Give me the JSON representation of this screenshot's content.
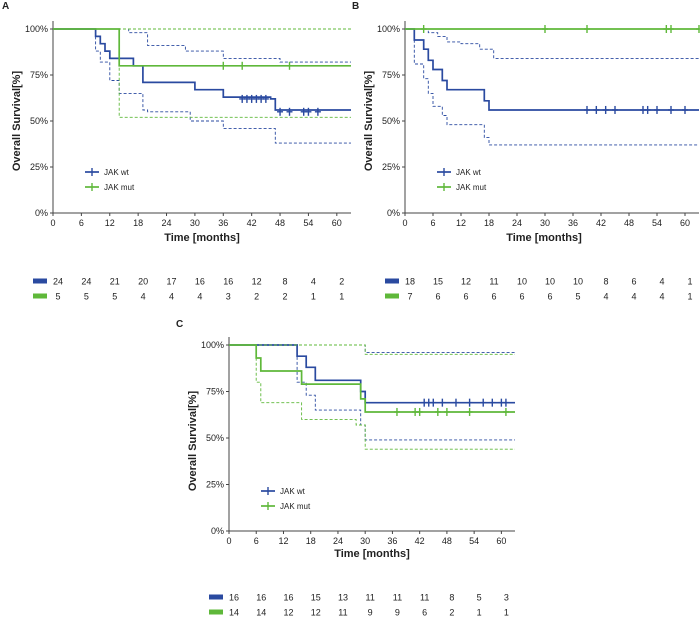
{
  "colors": {
    "wt": "#2a4aa0",
    "mut": "#5fb83a",
    "axis": "#444444"
  },
  "x_label": "Time [months]",
  "y_label": "Overall Survival[%]",
  "legend": {
    "wt": "JAK wt",
    "mut": "JAK mut"
  },
  "x_ticks": [
    0,
    6,
    12,
    18,
    24,
    30,
    36,
    42,
    48,
    54,
    60
  ],
  "y_ticks": [
    "0%",
    "25%",
    "50%",
    "75%",
    "100%"
  ],
  "chart_data": [
    {
      "panel": "A",
      "type": "line",
      "subtype": "kaplan-meier step",
      "xlabel": "Time [months]",
      "ylabel": "Overall Survival[%]",
      "xlim": [
        0,
        63
      ],
      "ylim": [
        0,
        100
      ],
      "series": [
        {
          "name": "JAK wt",
          "color": "#2a4aa0",
          "steps": [
            [
              0,
              100
            ],
            [
              9,
              96
            ],
            [
              10,
              92
            ],
            [
              11,
              88
            ],
            [
              12,
              84
            ],
            [
              17,
              80
            ],
            [
              19,
              71
            ],
            [
              30,
              67
            ],
            [
              36,
              63
            ],
            [
              46,
              62
            ],
            [
              47,
              56
            ],
            [
              63,
              56
            ]
          ],
          "censored": [
            [
              40,
              62
            ],
            [
              41,
              62
            ],
            [
              42,
              62
            ],
            [
              43,
              62
            ],
            [
              44,
              62
            ],
            [
              45,
              62
            ],
            [
              48,
              55
            ],
            [
              50,
              55
            ],
            [
              53,
              55
            ],
            [
              54,
              55
            ],
            [
              56,
              55
            ]
          ],
          "ci_upper": [
            [
              0,
              100
            ],
            [
              13,
              100
            ],
            [
              16,
              98
            ],
            [
              20,
              91
            ],
            [
              28,
              88
            ],
            [
              36,
              84
            ],
            [
              48,
              82
            ],
            [
              63,
              82
            ]
          ],
          "ci_lower": [
            [
              0,
              100
            ],
            [
              9,
              88
            ],
            [
              10,
              82
            ],
            [
              12,
              72
            ],
            [
              14,
              65
            ],
            [
              19,
              56
            ],
            [
              20,
              55
            ],
            [
              29,
              50
            ],
            [
              36,
              46
            ],
            [
              47,
              38
            ],
            [
              63,
              38
            ]
          ]
        },
        {
          "name": "JAK mut",
          "color": "#5fb83a",
          "steps": [
            [
              0,
              100
            ],
            [
              14,
              100
            ],
            [
              14,
              80
            ],
            [
              63,
              80
            ]
          ],
          "censored": [
            [
              36,
              80
            ],
            [
              40,
              80
            ],
            [
              50,
              80
            ]
          ],
          "ci_upper": [
            [
              0,
              100
            ],
            [
              63,
              100
            ]
          ],
          "ci_lower": [
            [
              0,
              100
            ],
            [
              14,
              100
            ],
            [
              14,
              52
            ],
            [
              63,
              52
            ]
          ]
        }
      ],
      "risk_table": {
        "wt": [
          "24",
          "24",
          "21",
          "20",
          "17",
          "16",
          "16",
          "12",
          "8",
          "4",
          "2"
        ],
        "mut": [
          "5",
          "5",
          "5",
          "4",
          "4",
          "4",
          "3",
          "2",
          "2",
          "1",
          "1"
        ]
      }
    },
    {
      "panel": "B",
      "type": "line",
      "subtype": "kaplan-meier step",
      "xlabel": "Time [months]",
      "ylabel": "Overall Survival[%]",
      "xlim": [
        0,
        63
      ],
      "ylim": [
        0,
        100
      ],
      "series": [
        {
          "name": "JAK wt",
          "color": "#2a4aa0",
          "steps": [
            [
              0,
              100
            ],
            [
              2,
              94
            ],
            [
              4,
              89
            ],
            [
              5,
              83
            ],
            [
              6,
              78
            ],
            [
              8,
              72
            ],
            [
              9,
              67
            ],
            [
              17,
              61
            ],
            [
              18,
              56
            ],
            [
              63,
              56
            ]
          ],
          "censored": [
            [
              39,
              56
            ],
            [
              41,
              56
            ],
            [
              43,
              56
            ],
            [
              45,
              56
            ],
            [
              51,
              56
            ],
            [
              52,
              56
            ],
            [
              54,
              56
            ],
            [
              57,
              56
            ],
            [
              60,
              56
            ]
          ],
          "ci_upper": [
            [
              0,
              100
            ],
            [
              3,
              100
            ],
            [
              5,
              98
            ],
            [
              7,
              96
            ],
            [
              9,
              93
            ],
            [
              12,
              92
            ],
            [
              16,
              89
            ],
            [
              19,
              84
            ],
            [
              63,
              84
            ]
          ],
          "ci_lower": [
            [
              0,
              100
            ],
            [
              2,
              81
            ],
            [
              4,
              73
            ],
            [
              5,
              65
            ],
            [
              6,
              58
            ],
            [
              8,
              53
            ],
            [
              9,
              48
            ],
            [
              17,
              41
            ],
            [
              18,
              37
            ],
            [
              63,
              37
            ]
          ]
        },
        {
          "name": "JAK mut",
          "color": "#5fb83a",
          "steps": [
            [
              0,
              100
            ],
            [
              63,
              100
            ]
          ],
          "censored": [
            [
              4,
              100
            ],
            [
              30,
              100
            ],
            [
              39,
              100
            ],
            [
              56,
              100
            ],
            [
              57,
              100
            ],
            [
              63,
              100
            ]
          ],
          "ci_upper": [
            [
              0,
              100
            ],
            [
              63,
              100
            ]
          ],
          "ci_lower": [
            [
              0,
              100
            ],
            [
              63,
              100
            ]
          ]
        }
      ],
      "risk_table": {
        "wt": [
          "18",
          "15",
          "12",
          "11",
          "10",
          "10",
          "10",
          "8",
          "6",
          "4",
          "1"
        ],
        "mut": [
          "7",
          "6",
          "6",
          "6",
          "6",
          "6",
          "5",
          "4",
          "4",
          "4",
          "1"
        ]
      }
    },
    {
      "panel": "C",
      "type": "line",
      "subtype": "kaplan-meier step",
      "xlabel": "Time [months]",
      "ylabel": "Overall Survival[%]",
      "xlim": [
        0,
        63
      ],
      "ylim": [
        0,
        100
      ],
      "series": [
        {
          "name": "JAK wt",
          "color": "#2a4aa0",
          "steps": [
            [
              0,
              100
            ],
            [
              15,
              94
            ],
            [
              17,
              88
            ],
            [
              19,
              81
            ],
            [
              29,
              75
            ],
            [
              30,
              69
            ],
            [
              63,
              69
            ]
          ],
          "censored": [
            [
              43,
              69
            ],
            [
              44,
              69
            ],
            [
              45,
              69
            ],
            [
              47,
              69
            ],
            [
              50,
              69
            ],
            [
              53,
              69
            ],
            [
              56,
              69
            ],
            [
              58,
              69
            ],
            [
              60,
              69
            ],
            [
              61,
              69
            ]
          ],
          "ci_upper": [
            [
              0,
              100
            ],
            [
              30,
              100
            ],
            [
              30,
              96
            ],
            [
              63,
              96
            ]
          ],
          "ci_lower": [
            [
              0,
              100
            ],
            [
              15,
              80
            ],
            [
              17,
              73
            ],
            [
              19,
              65
            ],
            [
              29,
              57
            ],
            [
              30,
              49
            ],
            [
              63,
              49
            ]
          ]
        },
        {
          "name": "JAK mut",
          "color": "#5fb83a",
          "steps": [
            [
              0,
              100
            ],
            [
              6,
              93
            ],
            [
              7,
              86
            ],
            [
              15,
              86
            ],
            [
              16,
              79
            ],
            [
              29,
              71
            ],
            [
              30,
              64
            ],
            [
              63,
              64
            ]
          ],
          "censored": [
            [
              37,
              64
            ],
            [
              41,
              64
            ],
            [
              42,
              64
            ],
            [
              46,
              64
            ],
            [
              48,
              64
            ],
            [
              53,
              64
            ],
            [
              61,
              64
            ]
          ],
          "ci_upper": [
            [
              0,
              100
            ],
            [
              30,
              100
            ],
            [
              30,
              95
            ],
            [
              63,
              95
            ]
          ],
          "ci_lower": [
            [
              0,
              100
            ],
            [
              6,
              80
            ],
            [
              7,
              69
            ],
            [
              16,
              60
            ],
            [
              28,
              57
            ],
            [
              30,
              44
            ],
            [
              63,
              44
            ]
          ]
        }
      ],
      "risk_table": {
        "wt": [
          "16",
          "16",
          "16",
          "15",
          "13",
          "11",
          "11",
          "11",
          "8",
          "5",
          "3"
        ],
        "mut": [
          "14",
          "14",
          "12",
          "12",
          "11",
          "9",
          "9",
          "6",
          "2",
          "1",
          "1"
        ]
      }
    }
  ]
}
